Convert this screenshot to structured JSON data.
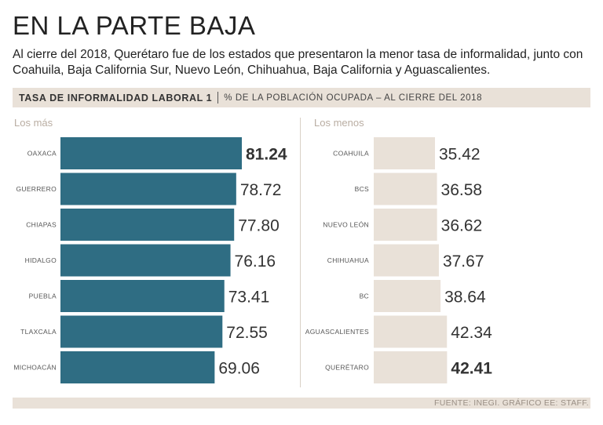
{
  "title": "EN LA PARTE BAJA",
  "subtitle": "Al cierre del 2018, Querétaro fue de los estados que presentaron la menor tasa de informalidad, junto con Coahuila, Baja California Sur, Nuevo León, Chihuahua, Baja California y Aguascalientes.",
  "header": {
    "bold": "TASA DE INFORMALIDAD LABORAL 1",
    "sub": "% DE LA POBLACIÓN OCUPADA – AL CIERRE DEL 2018"
  },
  "footer": "FUENTE: INEGI. GRÁFICO EE: STAFF.",
  "colors": {
    "left_bar": "#2f6d83",
    "right_bar": "#e9e1d8",
    "background_band": "#e9e1d8"
  },
  "chart_data": [
    {
      "type": "bar",
      "orientation": "horizontal",
      "title": "Los más",
      "categories": [
        "OAXACA",
        "GUERRERO",
        "CHIAPAS",
        "HIDALGO",
        "PUEBLA",
        "TLAXCALA",
        "MICHOACÁN"
      ],
      "values": [
        81.24,
        78.72,
        77.8,
        76.16,
        73.41,
        72.55,
        69.06
      ],
      "value_labels": [
        "81.24",
        "78.72",
        "77.80",
        "76.16",
        "73.41",
        "72.55",
        "69.06"
      ],
      "highlight_index": 0
    },
    {
      "type": "bar",
      "orientation": "horizontal",
      "title": "Los menos",
      "categories": [
        "COAHUILA",
        "BCS",
        "NUEVO LEÓN",
        "CHIHUAHUA",
        "BC",
        "AGUASCALIENTES",
        "QUERÉTARO"
      ],
      "values": [
        35.42,
        36.58,
        36.62,
        37.67,
        38.64,
        42.34,
        42.41
      ],
      "value_labels": [
        "35.42",
        "36.58",
        "36.62",
        "37.67",
        "38.64",
        "42.34",
        "42.41"
      ],
      "highlight_index": 6
    }
  ]
}
